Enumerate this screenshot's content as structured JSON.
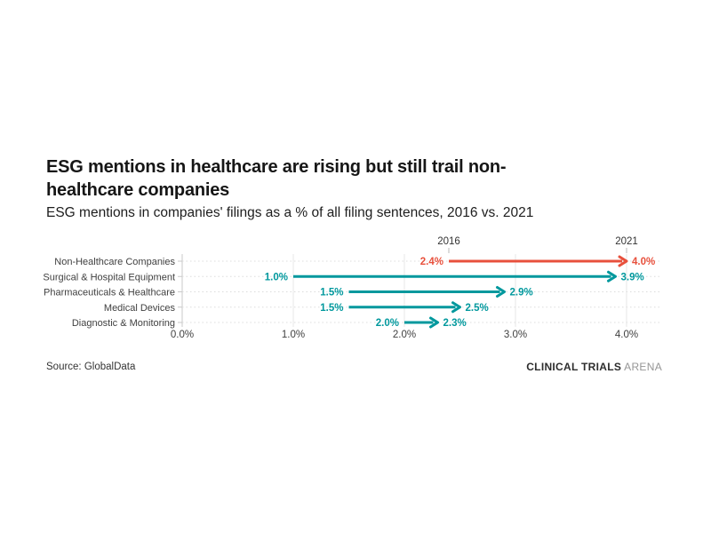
{
  "header": {
    "title_lines": [
      "ESG mentions in healthcare are rising but still trail non-",
      "healthcare companies"
    ],
    "subtitle": "ESG mentions in companies' filings as a % of all filing sentences, 2016 vs. 2021"
  },
  "chart_data": {
    "type": "arrow",
    "title": "ESG mentions in healthcare are rising but still trail non-healthcare companies",
    "subtitle": "ESG mentions in companies' filings as a % of all filing sentences, 2016 vs. 2021",
    "categories": [
      "Non-Healthcare Companies",
      "Surgical & Hospital Equipment",
      "Pharmaceuticals & Healthcare",
      "Medical Devices",
      "Diagnostic & Monitoring"
    ],
    "series": [
      {
        "name": "2016",
        "values": [
          2.4,
          1.0,
          1.5,
          1.5,
          2.0
        ]
      },
      {
        "name": "2021",
        "values": [
          4.0,
          3.9,
          2.9,
          2.5,
          2.3
        ]
      }
    ],
    "value_labels_from": [
      "2.4%",
      "1.0%",
      "1.5%",
      "1.5%",
      "2.0%"
    ],
    "value_labels_to": [
      "4.0%",
      "3.9%",
      "2.9%",
      "2.5%",
      "2.3%"
    ],
    "row_colors": [
      "#e8503c",
      "#00989d",
      "#00989d",
      "#00989d",
      "#00989d"
    ],
    "year_from_label": "2016",
    "year_to_label": "2021",
    "x_ticks": [
      "0.0%",
      "1.0%",
      "2.0%",
      "3.0%",
      "4.0%"
    ],
    "x_tick_values": [
      0,
      1,
      2,
      3,
      4
    ],
    "xlim": [
      0,
      4
    ],
    "grid": "vertical solid lines at each 1%, dotted horizontal line per row",
    "legend_position": "year labels above first row endpoints",
    "colors": {
      "highlight": "#e8503c",
      "teal": "#00989d",
      "axis": "#c9c9c9",
      "gridline": "#e7e7e7",
      "dotted": "#dcdcdc",
      "text": "#3f3f3f"
    }
  },
  "footer": {
    "source": "Source: GlobalData",
    "brand_bold": "CLINICAL TRIALS",
    "brand_light": "ARENA"
  }
}
